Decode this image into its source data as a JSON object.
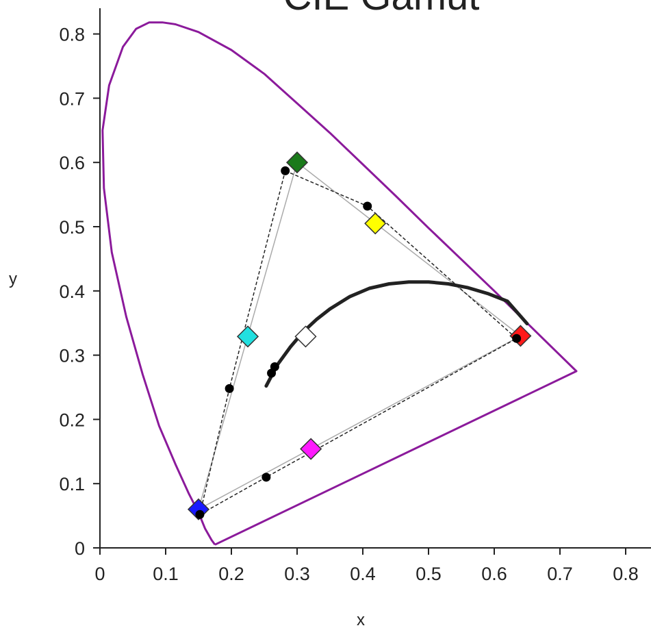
{
  "chart_data": {
    "type": "scatter",
    "title": "CIE Gamut",
    "xlabel": "x",
    "ylabel": "y",
    "xlim": [
      0,
      0.85
    ],
    "ylim": [
      0,
      0.85
    ],
    "xticks": [
      "0",
      "0.1",
      "0.2",
      "0.3",
      "0.4",
      "0.5",
      "0.6",
      "0.7",
      "0.8"
    ],
    "yticks": [
      "0",
      "0.1",
      "0.2",
      "0.3",
      "0.4",
      "0.5",
      "0.6",
      "0.7",
      "0.8"
    ],
    "grid": false,
    "spectral_locus": {
      "color": "#8B1A9B",
      "points": [
        [
          0.175,
          0.005
        ],
        [
          0.17,
          0.012
        ],
        [
          0.16,
          0.03
        ],
        [
          0.15,
          0.055
        ],
        [
          0.135,
          0.085
        ],
        [
          0.115,
          0.13
        ],
        [
          0.09,
          0.19
        ],
        [
          0.065,
          0.27
        ],
        [
          0.04,
          0.36
        ],
        [
          0.018,
          0.46
        ],
        [
          0.006,
          0.56
        ],
        [
          0.004,
          0.65
        ],
        [
          0.014,
          0.72
        ],
        [
          0.035,
          0.78
        ],
        [
          0.055,
          0.808
        ],
        [
          0.075,
          0.818
        ],
        [
          0.095,
          0.818
        ],
        [
          0.115,
          0.815
        ],
        [
          0.15,
          0.803
        ],
        [
          0.2,
          0.775
        ],
        [
          0.25,
          0.738
        ],
        [
          0.3,
          0.692
        ],
        [
          0.35,
          0.646
        ],
        [
          0.4,
          0.597
        ],
        [
          0.45,
          0.548
        ],
        [
          0.5,
          0.498
        ],
        [
          0.55,
          0.449
        ],
        [
          0.6,
          0.4
        ],
        [
          0.65,
          0.35
        ],
        [
          0.7,
          0.3
        ],
        [
          0.725,
          0.275
        ],
        [
          0.175,
          0.005
        ]
      ]
    },
    "planckian_locus": {
      "color": "#222222",
      "points": [
        [
          0.253,
          0.252
        ],
        [
          0.27,
          0.285
        ],
        [
          0.29,
          0.313
        ],
        [
          0.31,
          0.337
        ],
        [
          0.33,
          0.356
        ],
        [
          0.35,
          0.372
        ],
        [
          0.38,
          0.391
        ],
        [
          0.41,
          0.404
        ],
        [
          0.44,
          0.411
        ],
        [
          0.47,
          0.414
        ],
        [
          0.5,
          0.414
        ],
        [
          0.53,
          0.411
        ],
        [
          0.56,
          0.405
        ],
        [
          0.59,
          0.396
        ],
        [
          0.62,
          0.384
        ],
        [
          0.65,
          0.349
        ]
      ]
    },
    "reference_gamut": {
      "color": "#aaaaaa",
      "line": "solid",
      "vertices": [
        [
          0.3,
          0.6
        ],
        [
          0.64,
          0.33
        ],
        [
          0.15,
          0.06
        ]
      ]
    },
    "measured_gamut": {
      "color": "#222222",
      "line": "dashed",
      "points": [
        [
          0.282,
          0.587
        ],
        [
          0.407,
          0.532
        ],
        [
          0.634,
          0.326
        ],
        [
          0.253,
          0.11
        ],
        [
          0.152,
          0.052
        ],
        [
          0.197,
          0.248
        ],
        [
          0.282,
          0.587
        ]
      ]
    },
    "reference_points": [
      {
        "label": "green",
        "x": 0.3,
        "y": 0.6,
        "color": "#1a7a1a"
      },
      {
        "label": "yellow",
        "x": 0.419,
        "y": 0.505,
        "color": "#ffff00"
      },
      {
        "label": "red",
        "x": 0.64,
        "y": 0.33,
        "color": "#ff1a1a"
      },
      {
        "label": "magenta",
        "x": 0.321,
        "y": 0.154,
        "color": "#ff1aff"
      },
      {
        "label": "blue",
        "x": 0.15,
        "y": 0.06,
        "color": "#1a1aff"
      },
      {
        "label": "cyan",
        "x": 0.225,
        "y": 0.329,
        "color": "#22e0e0"
      },
      {
        "label": "white",
        "x": 0.313,
        "y": 0.329,
        "color": "#ffffff"
      }
    ],
    "measured_points": [
      {
        "x": 0.282,
        "y": 0.587
      },
      {
        "x": 0.407,
        "y": 0.532
      },
      {
        "x": 0.634,
        "y": 0.326
      },
      {
        "x": 0.253,
        "y": 0.11
      },
      {
        "x": 0.152,
        "y": 0.052
      },
      {
        "x": 0.197,
        "y": 0.248
      },
      {
        "x": 0.266,
        "y": 0.282
      },
      {
        "x": 0.261,
        "y": 0.272
      }
    ]
  }
}
